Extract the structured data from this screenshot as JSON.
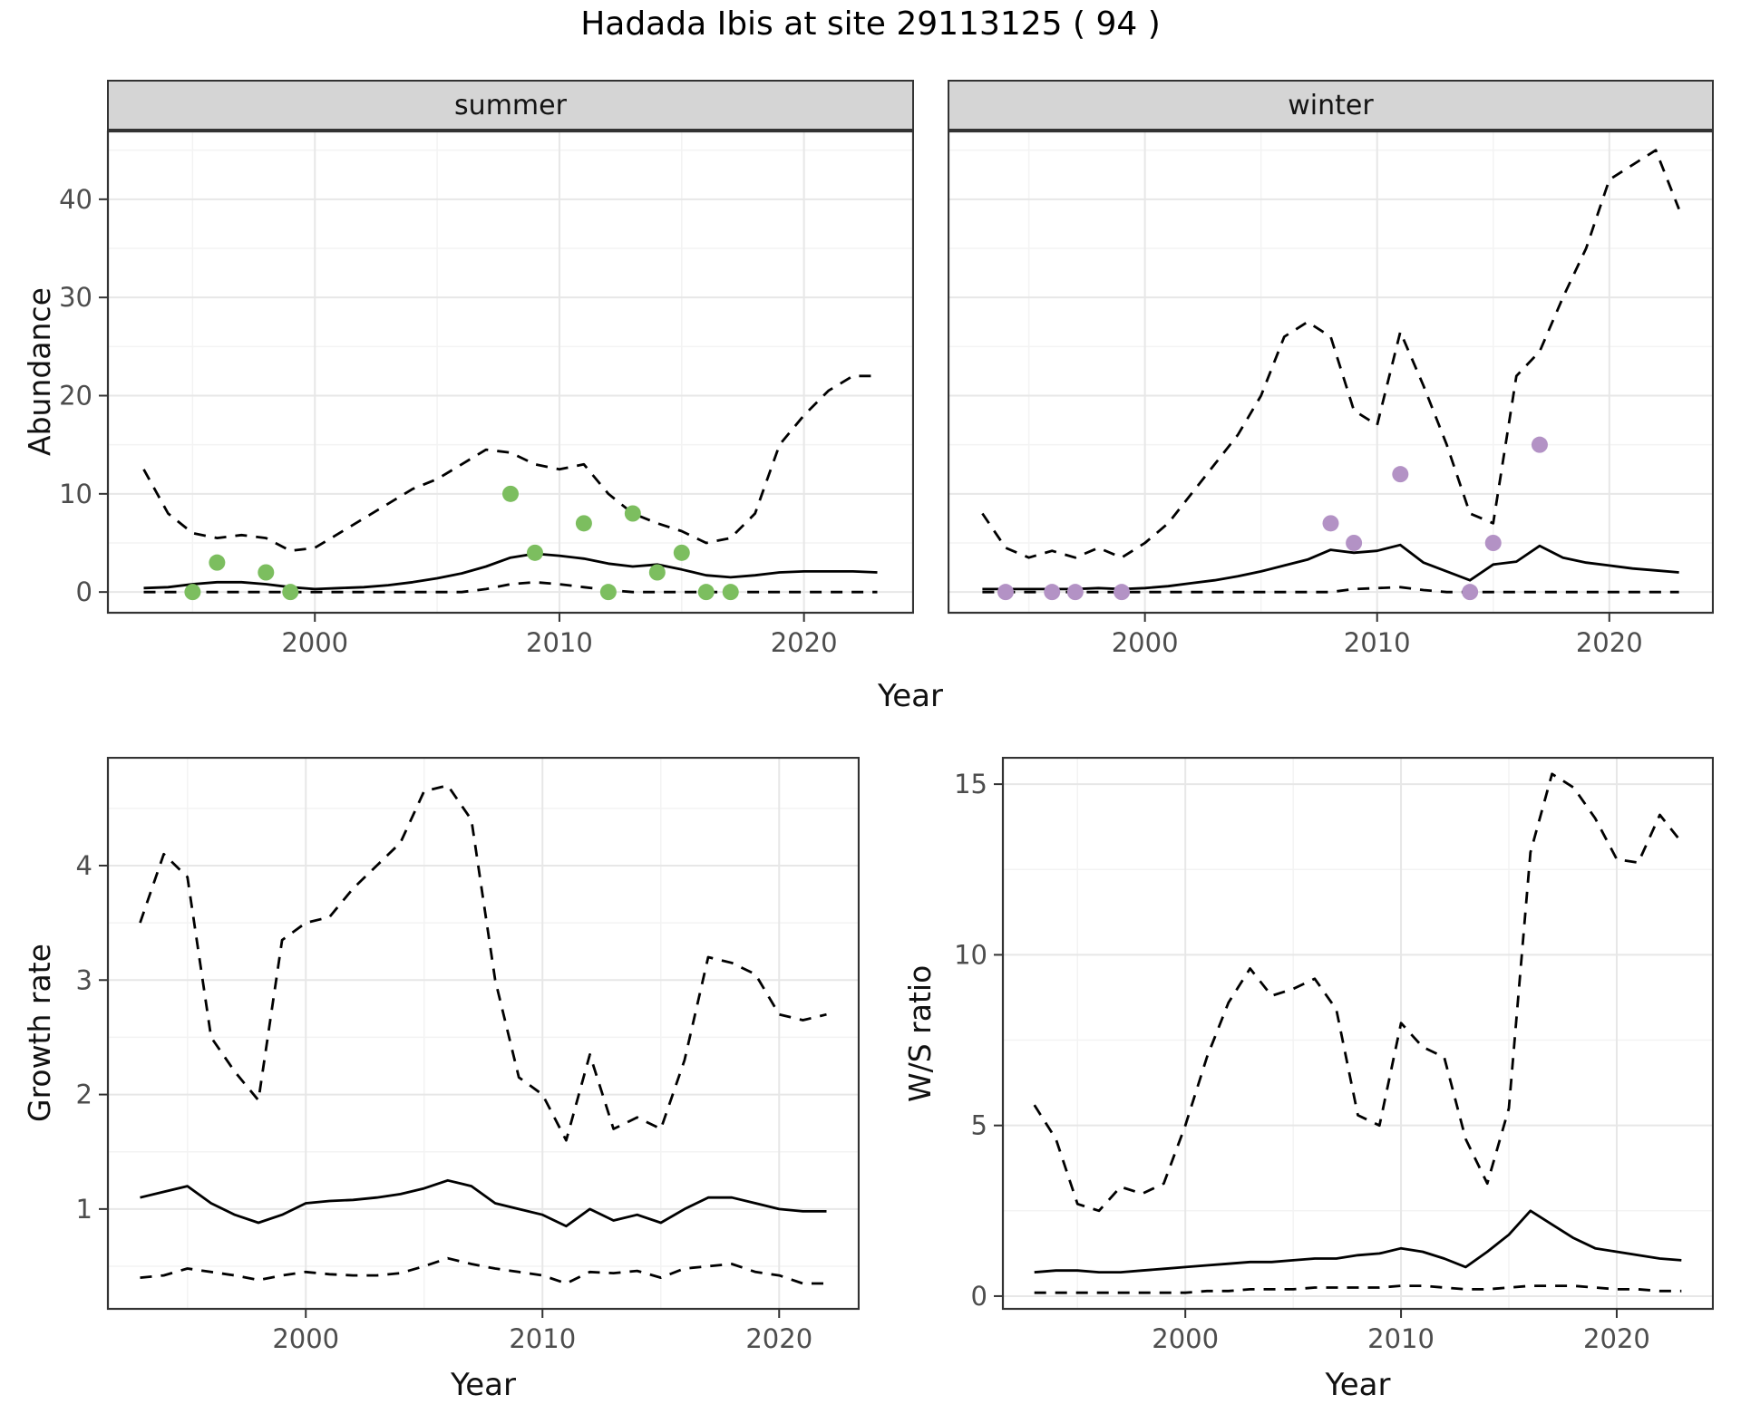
{
  "title": "Hadada Ibis at site 29113125 ( 94 )",
  "labels": {
    "x_axis": "Year",
    "y_abundance": "Abundance",
    "y_growth": "Growth rate",
    "y_ws": "W/S ratio",
    "facet_summer": "summer",
    "facet_winter": "winter"
  },
  "colors": {
    "summer_points": "#7cbe5f",
    "winter_points": "#b392c5",
    "line": "#000000",
    "grid_major": "#e7e7e7",
    "grid_minor": "#f3f3f3",
    "strip_bg": "#d5d5d5",
    "panel_border": "#333333",
    "tick_text": "#4d4d4d"
  },
  "chart_data": [
    {
      "id": "abundance-summer",
      "type": "line",
      "facet": "summer",
      "title": "",
      "xlabel": "Year",
      "ylabel": "Abundance",
      "xlim": [
        1991.5,
        2024.5
      ],
      "ylim": [
        -2.2,
        47
      ],
      "xticks": [
        2000,
        2010,
        2020
      ],
      "yticks": [
        0,
        10,
        20,
        30,
        40
      ],
      "x": [
        1993,
        1994,
        1995,
        1996,
        1997,
        1998,
        1999,
        2000,
        2001,
        2002,
        2003,
        2004,
        2005,
        2006,
        2007,
        2008,
        2009,
        2010,
        2011,
        2012,
        2013,
        2014,
        2015,
        2016,
        2017,
        2018,
        2019,
        2020,
        2021,
        2022,
        2023
      ],
      "series": [
        {
          "name": "upper-credible",
          "style": "dashed",
          "values": [
            12.5,
            8.0,
            6.0,
            5.5,
            5.8,
            5.5,
            4.2,
            4.5,
            6.0,
            7.5,
            9.0,
            10.5,
            11.5,
            13.0,
            14.5,
            14.2,
            13.0,
            12.5,
            13.0,
            10.0,
            8.0,
            7.0,
            6.2,
            5.0,
            5.5,
            8.0,
            15.0,
            18.0,
            20.5,
            22.0,
            22.0
          ]
        },
        {
          "name": "lower-credible",
          "style": "dashed",
          "values": [
            0,
            0,
            0,
            0,
            0,
            0,
            0,
            0,
            0,
            0,
            0,
            0,
            0,
            0,
            0.3,
            0.8,
            1.0,
            0.8,
            0.5,
            0.2,
            0,
            0,
            0,
            0,
            0,
            0,
            0,
            0,
            0,
            0,
            0
          ]
        },
        {
          "name": "median-fit",
          "style": "solid",
          "values": [
            0.4,
            0.5,
            0.8,
            1.0,
            1.0,
            0.8,
            0.5,
            0.3,
            0.4,
            0.5,
            0.7,
            1.0,
            1.4,
            1.9,
            2.6,
            3.5,
            3.9,
            3.7,
            3.4,
            2.9,
            2.6,
            2.8,
            2.3,
            1.7,
            1.5,
            1.7,
            2.0,
            2.1,
            2.1,
            2.1,
            2.0
          ]
        },
        {
          "name": "observed-counts",
          "style": "points",
          "color_key": "summer_points",
          "points": [
            [
              1995,
              0
            ],
            [
              1996,
              3
            ],
            [
              1998,
              2
            ],
            [
              1999,
              0
            ],
            [
              2008,
              10
            ],
            [
              2009,
              4
            ],
            [
              2011,
              7
            ],
            [
              2012,
              0
            ],
            [
              2013,
              8
            ],
            [
              2014,
              2
            ],
            [
              2015,
              4
            ],
            [
              2016,
              0
            ],
            [
              2017,
              0
            ]
          ]
        }
      ]
    },
    {
      "id": "abundance-winter",
      "type": "line",
      "facet": "winter",
      "title": "",
      "xlabel": "Year",
      "ylabel": "Abundance",
      "xlim": [
        1991.5,
        2024.5
      ],
      "ylim": [
        -2.2,
        47
      ],
      "xticks": [
        2000,
        2010,
        2020
      ],
      "yticks": [
        0,
        10,
        20,
        30,
        40
      ],
      "x": [
        1993,
        1994,
        1995,
        1996,
        1997,
        1998,
        1999,
        2000,
        2001,
        2002,
        2003,
        2004,
        2005,
        2006,
        2007,
        2008,
        2009,
        2010,
        2011,
        2012,
        2013,
        2014,
        2015,
        2016,
        2017,
        2018,
        2019,
        2020,
        2021,
        2022,
        2023
      ],
      "series": [
        {
          "name": "upper-credible",
          "style": "dashed",
          "values": [
            8.0,
            4.5,
            3.5,
            4.2,
            3.5,
            4.5,
            3.5,
            5.0,
            7.0,
            10.0,
            13.0,
            16.0,
            20.0,
            26.0,
            27.5,
            26.0,
            18.5,
            17.0,
            26.5,
            21.0,
            15.0,
            8.0,
            7.0,
            22.0,
            24.5,
            30.0,
            35.0,
            42.0,
            43.5,
            45.0,
            39.0
          ]
        },
        {
          "name": "lower-credible",
          "style": "dashed",
          "values": [
            0,
            0,
            0,
            0,
            0,
            0,
            0,
            0,
            0,
            0,
            0,
            0,
            0,
            0,
            0,
            0,
            0.3,
            0.4,
            0.5,
            0.2,
            0,
            0,
            0,
            0,
            0,
            0,
            0,
            0,
            0,
            0,
            0
          ]
        },
        {
          "name": "median-fit",
          "style": "solid",
          "values": [
            0.3,
            0.3,
            0.3,
            0.3,
            0.3,
            0.4,
            0.3,
            0.4,
            0.6,
            0.9,
            1.2,
            1.6,
            2.1,
            2.7,
            3.3,
            4.3,
            4.0,
            4.2,
            4.8,
            3.0,
            2.1,
            1.2,
            2.8,
            3.1,
            4.7,
            3.5,
            3.0,
            2.7,
            2.4,
            2.2,
            2.0
          ]
        },
        {
          "name": "observed-counts",
          "style": "points",
          "color_key": "winter_points",
          "points": [
            [
              1994,
              0
            ],
            [
              1996,
              0
            ],
            [
              1997,
              0
            ],
            [
              1999,
              0
            ],
            [
              2008,
              7
            ],
            [
              2009,
              5
            ],
            [
              2011,
              12
            ],
            [
              2014,
              0
            ],
            [
              2015,
              5
            ],
            [
              2017,
              15
            ]
          ]
        }
      ]
    },
    {
      "id": "growth-rate",
      "type": "line",
      "facet": "",
      "title": "",
      "xlabel": "Year",
      "ylabel": "Growth rate",
      "xlim": [
        1991.6,
        2023.4
      ],
      "ylim": [
        0.12,
        4.95
      ],
      "xticks": [
        2000,
        2010,
        2020
      ],
      "yticks": [
        1,
        2,
        3,
        4
      ],
      "x": [
        1993,
        1994,
        1995,
        1996,
        1997,
        1998,
        1999,
        2000,
        2001,
        2002,
        2003,
        2004,
        2005,
        2006,
        2007,
        2008,
        2009,
        2010,
        2011,
        2012,
        2013,
        2014,
        2015,
        2016,
        2017,
        2018,
        2019,
        2020,
        2021,
        2022
      ],
      "series": [
        {
          "name": "upper-credible",
          "style": "dashed",
          "values": [
            3.5,
            4.1,
            3.9,
            2.5,
            2.2,
            1.95,
            3.35,
            3.5,
            3.55,
            3.8,
            4.0,
            4.2,
            4.65,
            4.7,
            4.4,
            3.0,
            2.15,
            2.0,
            1.6,
            2.35,
            1.7,
            1.8,
            1.7,
            2.3,
            3.2,
            3.15,
            3.05,
            2.7,
            2.65,
            2.7
          ]
        },
        {
          "name": "lower-credible",
          "style": "dashed",
          "values": [
            0.4,
            0.42,
            0.48,
            0.45,
            0.42,
            0.38,
            0.42,
            0.45,
            0.43,
            0.42,
            0.42,
            0.44,
            0.5,
            0.57,
            0.52,
            0.48,
            0.45,
            0.42,
            0.35,
            0.45,
            0.44,
            0.46,
            0.4,
            0.48,
            0.5,
            0.52,
            0.45,
            0.42,
            0.35,
            0.35
          ]
        },
        {
          "name": "median-fit",
          "style": "solid",
          "values": [
            1.1,
            1.15,
            1.2,
            1.05,
            0.95,
            0.88,
            0.95,
            1.05,
            1.07,
            1.08,
            1.1,
            1.13,
            1.18,
            1.25,
            1.2,
            1.05,
            1.0,
            0.95,
            0.85,
            1.0,
            0.9,
            0.95,
            0.88,
            1.0,
            1.1,
            1.1,
            1.05,
            1.0,
            0.98,
            0.98
          ]
        }
      ]
    },
    {
      "id": "ws-ratio",
      "type": "line",
      "facet": "",
      "title": "",
      "xlabel": "Year",
      "ylabel": "W/S ratio",
      "xlim": [
        1991.5,
        2024.5
      ],
      "ylim": [
        -0.4,
        15.8
      ],
      "xticks": [
        2000,
        2010,
        2020
      ],
      "yticks": [
        0,
        5,
        10,
        15
      ],
      "x": [
        1993,
        1994,
        1995,
        1996,
        1997,
        1998,
        1999,
        2000,
        2001,
        2002,
        2003,
        2004,
        2005,
        2006,
        2007,
        2008,
        2009,
        2010,
        2011,
        2012,
        2013,
        2014,
        2015,
        2016,
        2017,
        2018,
        2019,
        2020,
        2021,
        2022,
        2023
      ],
      "series": [
        {
          "name": "upper-credible",
          "style": "dashed",
          "values": [
            5.6,
            4.6,
            2.7,
            2.5,
            3.2,
            3.0,
            3.3,
            5.0,
            7.0,
            8.6,
            9.6,
            8.8,
            9.0,
            9.3,
            8.4,
            5.3,
            5.0,
            8.0,
            7.3,
            7.0,
            4.6,
            3.3,
            5.5,
            13.0,
            15.3,
            14.9,
            14.0,
            12.8,
            12.7,
            14.1,
            13.3
          ]
        },
        {
          "name": "lower-credible",
          "style": "dashed",
          "values": [
            0.1,
            0.1,
            0.1,
            0.1,
            0.1,
            0.1,
            0.1,
            0.1,
            0.15,
            0.15,
            0.2,
            0.2,
            0.2,
            0.25,
            0.25,
            0.25,
            0.25,
            0.3,
            0.3,
            0.25,
            0.2,
            0.2,
            0.25,
            0.3,
            0.3,
            0.3,
            0.25,
            0.2,
            0.2,
            0.15,
            0.15
          ]
        },
        {
          "name": "median-fit",
          "style": "solid",
          "values": [
            0.7,
            0.75,
            0.75,
            0.7,
            0.7,
            0.75,
            0.8,
            0.85,
            0.9,
            0.95,
            1.0,
            1.0,
            1.05,
            1.1,
            1.1,
            1.2,
            1.25,
            1.4,
            1.3,
            1.1,
            0.85,
            1.3,
            1.8,
            2.5,
            2.1,
            1.7,
            1.4,
            1.3,
            1.2,
            1.1,
            1.05
          ]
        }
      ]
    }
  ]
}
